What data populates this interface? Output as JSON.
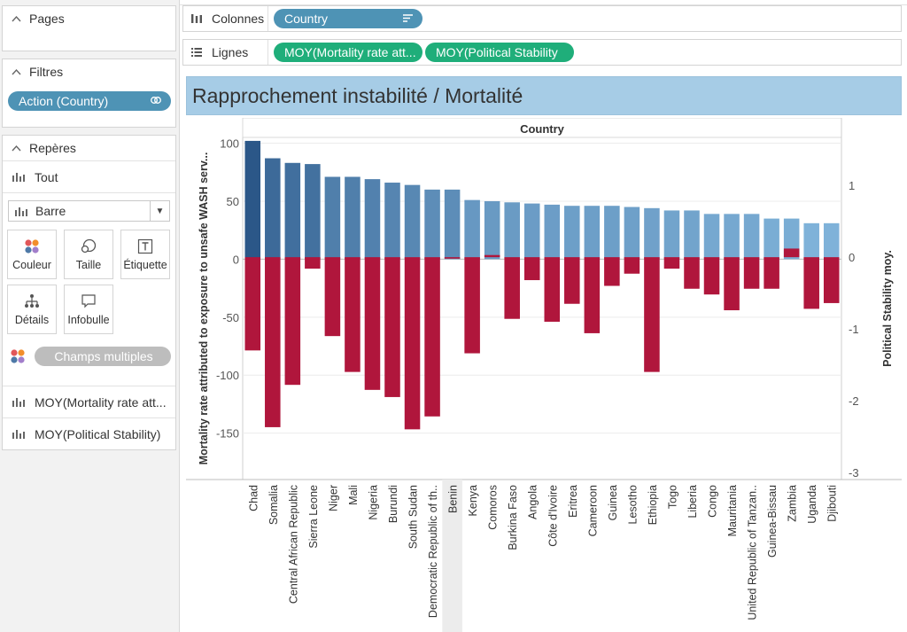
{
  "panel": {
    "pages_title": "Pages",
    "filters_title": "Filtres",
    "filter_pill": "Action (Country)",
    "marks_title": "Repères",
    "marks_all": "Tout",
    "mark_type": "Barre",
    "buttons": {
      "color": "Couleur",
      "size": "Taille",
      "label": "Étiquette",
      "detail": "Détails",
      "tooltip": "Infobulle"
    },
    "multi_fields": "Champs multiples",
    "measure_1": "MOY(Mortality rate att...",
    "measure_2": "MOY(Political Stability)"
  },
  "shelves": {
    "columns_label": "Colonnes",
    "columns_pill": "Country",
    "rows_label": "Lignes",
    "rows_pill_1": "MOY(Mortality rate att...",
    "rows_pill_2": "MOY(Political Stability"
  },
  "viz_title": "Rapprochement  instabilité / Mortalité",
  "colors": {
    "pill_blue": "#4e93b5",
    "pill_green": "#1fae7a",
    "title_bg": "#a6cce6",
    "negative_bar": "#b0163c",
    "bar_dark": "#2b5788",
    "bar_light": "#7fb2d9"
  },
  "chart_data": {
    "type": "bar",
    "header": "Country",
    "categories": [
      "Chad",
      "Somalia",
      "Central African Republic",
      "Sierra Leone",
      "Niger",
      "Mali",
      "Nigeria",
      "Burundi",
      "South Sudan",
      "Democratic Republic of th..",
      "Benin",
      "Kenya",
      "Comoros",
      "Burkina Faso",
      "Angola",
      "Côte d'Ivoire",
      "Eritrea",
      "Cameroon",
      "Guinea",
      "Lesotho",
      "Ethiopia",
      "Togo",
      "Liberia",
      "Congo",
      "Mauritania",
      "United Republic of Tanzan..",
      "Guinea-Bissau",
      "Zambia",
      "Uganda",
      "Djibouti"
    ],
    "highlighted_category": "Benin",
    "series": [
      {
        "name": "Mortality rate attributed to exposure to unsafe WASH serv...",
        "axis": "left",
        "values": [
          102,
          87,
          83,
          82,
          71,
          71,
          69,
          66,
          64,
          60,
          60,
          51,
          50,
          49,
          48,
          47,
          46,
          46,
          46,
          45,
          44,
          42,
          42,
          39,
          39,
          39,
          35,
          35,
          31,
          31
        ]
      },
      {
        "name": "Political Stability moy.",
        "axis": "right",
        "values": [
          -1.3,
          -2.37,
          -1.78,
          -0.16,
          -1.1,
          -1.6,
          -1.85,
          -1.95,
          -2.4,
          -2.22,
          -0.02,
          -1.34,
          0.03,
          -0.86,
          -0.32,
          -0.9,
          -0.65,
          -1.06,
          -0.4,
          -0.23,
          -1.6,
          -0.16,
          -0.44,
          -0.52,
          -0.74,
          -0.44,
          -0.44,
          0.12,
          -0.72,
          -0.64
        ]
      }
    ],
    "ylabel": "Mortality rate attributed to exposure to unsafe WASH serv...",
    "y2label": "Political Stability moy.",
    "ylim": [
      -190,
      105
    ],
    "y2lim": [
      -3.1,
      1.67
    ],
    "yticks": [
      100,
      50,
      0,
      -50,
      -100,
      -150
    ],
    "y2ticks": [
      1,
      0,
      -1,
      -2,
      -3
    ],
    "grid": "horizontal"
  }
}
